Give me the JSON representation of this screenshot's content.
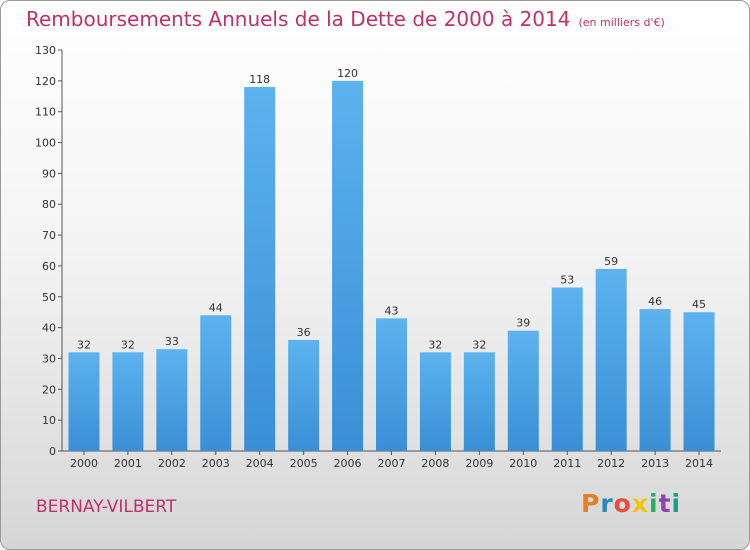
{
  "header": {
    "title": "Remboursements Annuels de la Dette de 2000 à 2014",
    "subtitle": "(en milliers d'€)"
  },
  "footer": {
    "location": "BERNAY-VILBERT",
    "logo_text": "Proxiti",
    "logo_colors": [
      "#e67e22",
      "#2e86c1",
      "#e74c3c",
      "#f1c40f",
      "#27ae60",
      "#8e44ad",
      "#16a085"
    ]
  },
  "chart_data": {
    "type": "bar",
    "categories": [
      "2000",
      "2001",
      "2002",
      "2003",
      "2004",
      "2005",
      "2006",
      "2007",
      "2008",
      "2009",
      "2010",
      "2011",
      "2012",
      "2013",
      "2014"
    ],
    "values": [
      32,
      32,
      33,
      44,
      118,
      36,
      120,
      43,
      32,
      32,
      39,
      53,
      59,
      46,
      45
    ],
    "ylim": [
      0,
      130
    ],
    "yticks": [
      0,
      10,
      20,
      30,
      40,
      50,
      60,
      70,
      80,
      90,
      100,
      110,
      120,
      130
    ],
    "grid": false,
    "bar_color": "#3a8fd6",
    "bar_color_light": "#5cb3ee"
  }
}
